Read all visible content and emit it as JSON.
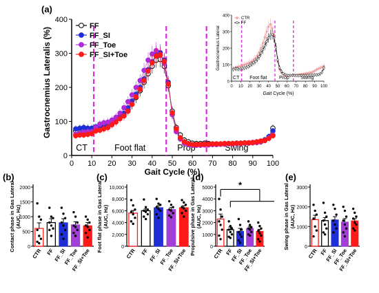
{
  "colors": {
    "FF": "#000000",
    "FF_SI": "#1f2fd6",
    "FF_Toe": "#b02cd8",
    "FF_SI_Toe": "#ff1a1a",
    "CTR": "#f0a0a0",
    "phase_line": "#d92cd9",
    "bar_FF_SI": "#1f2fd6",
    "bar_FF_Toe": "#a23fd6",
    "bar_FF_SI_Toe": "#ff1a1a"
  },
  "chart_data": [
    {
      "type": "line",
      "panel_label": "(a)",
      "xlabel": "Gait Cycle (%)",
      "ylabel": "Gastrocnemius Lateralis (%)",
      "xlim": [
        0,
        100
      ],
      "ylim": [
        0,
        400
      ],
      "xticks": [
        0,
        10,
        20,
        30,
        40,
        50,
        60,
        70,
        80,
        90,
        100
      ],
      "yticks": [
        0,
        100,
        200,
        300,
        400
      ],
      "phase_lines": [
        11,
        47,
        67
      ],
      "phase_labels": [
        "CT",
        "Foot flat",
        "Prop",
        "Swing"
      ],
      "legend": [
        "FF",
        "FF_SI",
        "FF_Toe",
        "FF_SI+Toe"
      ],
      "x": [
        2,
        4,
        6,
        8,
        10,
        12,
        14,
        16,
        18,
        20,
        22,
        24,
        26,
        28,
        30,
        32,
        34,
        36,
        38,
        40,
        42,
        44,
        46,
        48,
        50,
        52,
        54,
        56,
        58,
        60,
        62,
        64,
        66,
        68,
        70,
        72,
        74,
        76,
        78,
        80,
        82,
        84,
        86,
        88,
        90,
        92,
        94,
        96,
        98,
        100
      ],
      "series": [
        {
          "name": "FF",
          "values": [
            72,
            76,
            75,
            73,
            74,
            78,
            80,
            84,
            88,
            96,
            104,
            112,
            120,
            134,
            150,
            170,
            190,
            215,
            240,
            262,
            280,
            282,
            262,
            205,
            130,
            82,
            60,
            45,
            40,
            36,
            35,
            35,
            36,
            35,
            34,
            34,
            34,
            35,
            35,
            35,
            36,
            36,
            37,
            37,
            38,
            38,
            40,
            44,
            55,
            80
          ]
        },
        {
          "name": "FF_SI",
          "values": [
            78,
            80,
            82,
            80,
            80,
            84,
            86,
            90,
            94,
            100,
            108,
            116,
            124,
            140,
            160,
            180,
            200,
            225,
            252,
            275,
            298,
            302,
            280,
            215,
            120,
            75,
            50,
            38,
            32,
            30,
            30,
            31,
            32,
            32,
            33,
            33,
            33,
            34,
            34,
            35,
            35,
            36,
            36,
            37,
            38,
            40,
            42,
            46,
            55,
            72
          ]
        },
        {
          "name": "FF_Toe",
          "values": [
            62,
            65,
            68,
            70,
            70,
            82,
            92,
            96,
            98,
            104,
            112,
            124,
            140,
            158,
            178,
            200,
            220,
            250,
            280,
            298,
            308,
            296,
            270,
            210,
            120,
            70,
            48,
            36,
            32,
            30,
            30,
            30,
            31,
            31,
            32,
            32,
            33,
            33,
            34,
            34,
            35,
            35,
            36,
            36,
            37,
            38,
            40,
            44,
            52,
            60
          ]
        },
        {
          "name": "FF_SI+Toe",
          "values": [
            58,
            60,
            60,
            62,
            64,
            72,
            74,
            78,
            82,
            90,
            98,
            108,
            116,
            130,
            150,
            172,
            194,
            220,
            248,
            272,
            292,
            295,
            276,
            210,
            125,
            78,
            52,
            40,
            35,
            32,
            32,
            32,
            33,
            33,
            34,
            34,
            34,
            35,
            35,
            35,
            36,
            36,
            37,
            37,
            38,
            40,
            42,
            44,
            50,
            58
          ]
        }
      ]
    },
    {
      "type": "line",
      "inset": true,
      "xlabel": "Gait Cycle (%)",
      "ylabel": "Gastrocnemius Lateral",
      "xlim": [
        0,
        100
      ],
      "ylim": [
        0,
        400
      ],
      "xticks": [
        0,
        10,
        20,
        30,
        40,
        50,
        60,
        70,
        80,
        90,
        100
      ],
      "yticks": [
        0,
        100,
        200,
        300,
        400
      ],
      "phase_lines": [
        11,
        47,
        67
      ],
      "phase_labels": [
        "CT",
        "Foot flat",
        "Prop",
        "Swing"
      ],
      "legend": [
        "CTR",
        "FF"
      ],
      "x": [
        2,
        4,
        6,
        8,
        10,
        12,
        14,
        16,
        18,
        20,
        22,
        24,
        26,
        28,
        30,
        32,
        34,
        36,
        38,
        40,
        42,
        44,
        46,
        48,
        50,
        52,
        54,
        56,
        58,
        60,
        62,
        64,
        66,
        68,
        70,
        72,
        74,
        76,
        78,
        80,
        82,
        84,
        86,
        88,
        90,
        92,
        94,
        96,
        98,
        100
      ],
      "series": [
        {
          "name": "CTR",
          "values": [
            75,
            80,
            85,
            88,
            92,
            96,
            100,
            104,
            108,
            114,
            120,
            130,
            140,
            155,
            175,
            200,
            230,
            265,
            300,
            330,
            345,
            320,
            280,
            210,
            120,
            72,
            52,
            40,
            35,
            33,
            33,
            34,
            35,
            36,
            37,
            38,
            40,
            42,
            44,
            46,
            48,
            50,
            52,
            56,
            62,
            70,
            75,
            80,
            85,
            90
          ]
        },
        {
          "name": "FF",
          "values": [
            72,
            76,
            75,
            73,
            74,
            78,
            80,
            84,
            88,
            96,
            104,
            112,
            120,
            134,
            150,
            170,
            190,
            215,
            240,
            262,
            280,
            282,
            262,
            205,
            130,
            82,
            60,
            45,
            40,
            36,
            35,
            35,
            36,
            35,
            34,
            34,
            34,
            35,
            35,
            35,
            36,
            36,
            37,
            37,
            38,
            38,
            40,
            44,
            55,
            80
          ]
        }
      ]
    },
    {
      "type": "bar",
      "panel_label": "(b)",
      "ylabel": "Contact phase in Gas Lateral (AUC, Hz)",
      "categories": [
        "CTR",
        "FF",
        "FF_SI",
        "FF_Toe",
        "FF_SI+Toe"
      ],
      "values": [
        600,
        800,
        790,
        720,
        690
      ],
      "errors": [
        190,
        130,
        140,
        110,
        110
      ],
      "ylim": [
        0,
        2000
      ],
      "yticks": [
        0,
        500,
        1000,
        1500,
        2000
      ],
      "ytick_labels": [
        "0",
        "500",
        "1000",
        "1500",
        "2000"
      ],
      "points": [
        [
          1450,
          1000,
          900,
          550,
          350,
          250,
          150,
          100
        ],
        [
          1300,
          1000,
          950,
          800,
          700,
          600,
          550,
          350
        ],
        [
          1300,
          1100,
          950,
          800,
          700,
          550,
          400,
          250
        ],
        [
          1150,
          1000,
          800,
          700,
          650,
          550,
          450,
          350
        ],
        [
          1000,
          900,
          800,
          700,
          650,
          550,
          450,
          300
        ]
      ]
    },
    {
      "type": "bar",
      "panel_label": "(c)",
      "ylabel": "Foot flat phase in Gas Lateral (AUC, Hz)",
      "categories": [
        "CTR",
        "FF",
        "FF_SI",
        "FF_Toe",
        "FF_SI+Toe"
      ],
      "values": [
        5600,
        6000,
        6500,
        6200,
        6500
      ],
      "errors": [
        450,
        300,
        350,
        350,
        350
      ],
      "ylim": [
        0,
        10000
      ],
      "yticks": [
        0,
        2000,
        4000,
        6000,
        8000,
        10000
      ],
      "ytick_labels": [
        "0",
        "2,000",
        "4,000",
        "6,000",
        "8,000",
        "10,000"
      ],
      "points": [
        [
          7800,
          6900,
          6200,
          5800,
          5400,
          4800,
          4200,
          3800
        ],
        [
          7900,
          6600,
          6200,
          6000,
          5800,
          5400,
          5000,
          4600
        ],
        [
          8000,
          7200,
          7000,
          6600,
          6300,
          6000,
          5400,
          4800
        ],
        [
          7600,
          7000,
          6600,
          6200,
          6000,
          5600,
          5200,
          4900
        ],
        [
          7800,
          7400,
          7000,
          6600,
          6400,
          6000,
          5600,
          5000
        ]
      ]
    },
    {
      "type": "bar",
      "panel_label": "(d)",
      "ylabel": "Propulsive phase in Gas Lateral (AUC, Hz)",
      "categories": [
        "CTR",
        "FF",
        "FF_SI",
        "FF_Toe",
        "FF_SI+Toe"
      ],
      "values": [
        2300,
        1400,
        1250,
        1500,
        1250
      ],
      "errors": [
        420,
        220,
        260,
        180,
        180
      ],
      "ylim": [
        0,
        5000
      ],
      "yticks": [
        0,
        1000,
        2000,
        3000,
        4000,
        5000
      ],
      "ytick_labels": [
        "0",
        "1000",
        "2000",
        "3000",
        "4000",
        "5000"
      ],
      "significance": "*",
      "points": [
        [
          4000,
          3100,
          2500,
          2100,
          1800,
          1400,
          900,
          600
        ],
        [
          2100,
          1700,
          1500,
          1400,
          1200,
          1000,
          800,
          700
        ],
        [
          2300,
          1800,
          1400,
          1200,
          1000,
          800,
          500,
          300
        ],
        [
          2100,
          1800,
          1600,
          1500,
          1400,
          1200,
          1000,
          900
        ],
        [
          2000,
          1700,
          1500,
          1300,
          1100,
          900,
          600,
          400
        ]
      ]
    },
    {
      "type": "bar",
      "panel_label": "(e)",
      "ylabel": "Swing phase in Gas Lateral (AUC, Hz)",
      "categories": [
        "CTR",
        "FF",
        "FF_SI",
        "FF_Toe",
        "FF_SI+Toe"
      ],
      "values": [
        1350,
        1300,
        1330,
        1220,
        1280
      ],
      "errors": [
        220,
        150,
        170,
        180,
        120
      ],
      "ylim": [
        0,
        3000
      ],
      "yticks": [
        0,
        1000,
        2000,
        3000
      ],
      "ytick_labels": [
        "0",
        "1000",
        "2000",
        "3000"
      ],
      "points": [
        [
          2100,
          1800,
          1600,
          1400,
          1000,
          800,
          500
        ],
        [
          2200,
          1700,
          1500,
          1300,
          1100,
          900,
          700,
          600
        ],
        [
          2100,
          1900,
          1600,
          1300,
          1100,
          900,
          700
        ],
        [
          2000,
          1800,
          1500,
          1300,
          1100,
          900,
          700,
          500
        ],
        [
          1900,
          1700,
          1500,
          1400,
          1200,
          1100,
          900,
          800
        ]
      ]
    }
  ]
}
